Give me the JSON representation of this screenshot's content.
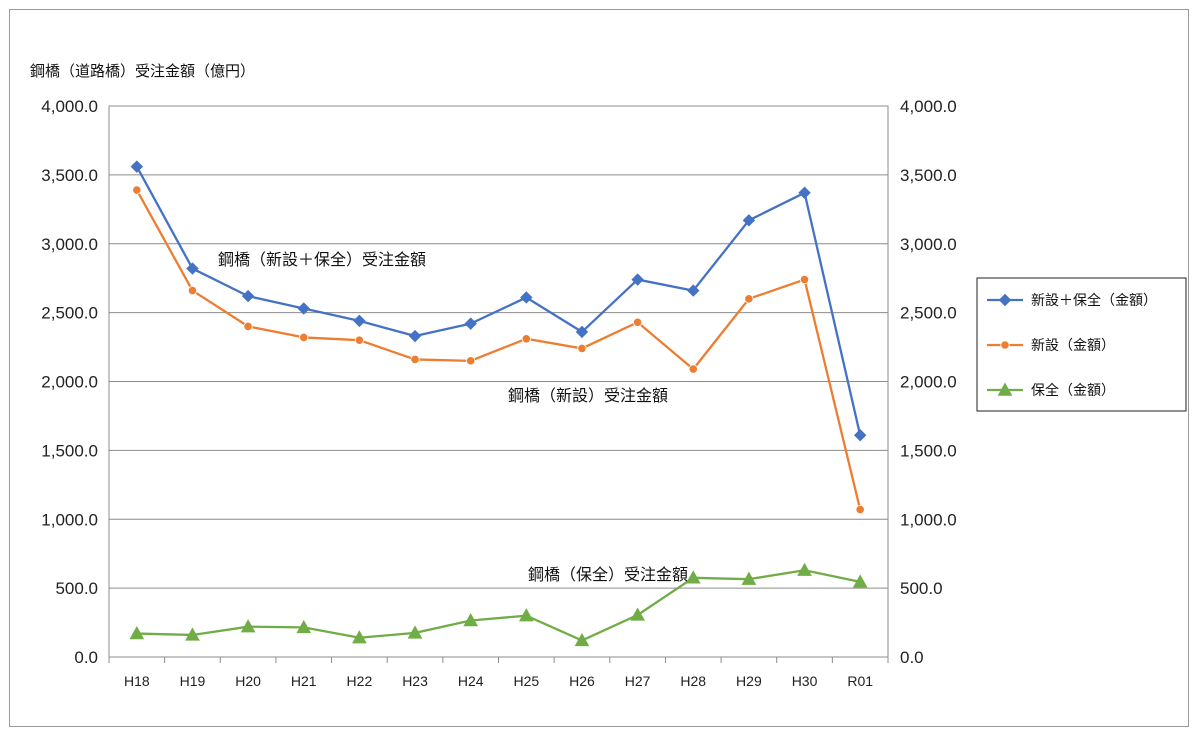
{
  "chart_data": {
    "type": "line",
    "ylabel": "鋼橋（道路橋）受注金額（億円）",
    "ylim": [
      0,
      4000
    ],
    "yticks": [
      "0.0",
      "500.0",
      "1,000.0",
      "1,500.0",
      "2,000.0",
      "2,500.0",
      "3,000.0",
      "3,500.0",
      "4,000.0"
    ],
    "categories": [
      "H18",
      "H19",
      "H20",
      "H21",
      "H22",
      "H23",
      "H24",
      "H25",
      "H26",
      "H27",
      "H28",
      "H29",
      "H30",
      "R01"
    ],
    "grid": true,
    "legend_position": "right",
    "series": [
      {
        "name": "新設＋保全（金額）",
        "color": "#4472c4",
        "marker": "diamond",
        "values": [
          3560,
          2820,
          2620,
          2530,
          2440,
          2330,
          2420,
          2610,
          2360,
          2740,
          2660,
          3170,
          3370,
          1610
        ]
      },
      {
        "name": "新設（金額）",
        "color": "#ed7d31",
        "marker": "circle",
        "values": [
          3390,
          2660,
          2400,
          2320,
          2300,
          2160,
          2150,
          2310,
          2240,
          2430,
          2090,
          2600,
          2740,
          1070
        ]
      },
      {
        "name": "保全（金額）",
        "color": "#70ad47",
        "marker": "triangle",
        "values": [
          170,
          160,
          220,
          215,
          140,
          175,
          265,
          300,
          120,
          305,
          575,
          565,
          630,
          545
        ]
      }
    ],
    "annotations": [
      {
        "text": "鋼橋（新設＋保全）受注金額",
        "series": 0
      },
      {
        "text": "鋼橋（新設）受注金額",
        "series": 1
      },
      {
        "text": "鋼橋（保全）受注金額",
        "series": 2
      }
    ]
  }
}
